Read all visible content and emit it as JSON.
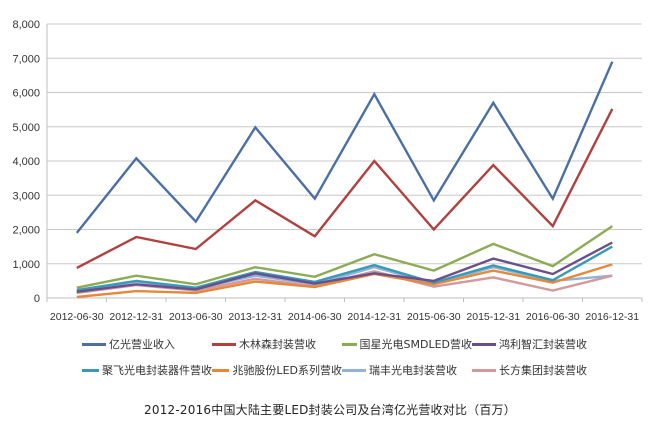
{
  "chart_data": {
    "type": "line",
    "title": "2012-2016中国大陆主要LED封装公司及台湾亿光营收对比（百万）",
    "xlabel": "",
    "ylabel": "",
    "ylim": [
      0,
      8000
    ],
    "yticks": [
      0,
      1000,
      2000,
      3000,
      4000,
      5000,
      6000,
      7000,
      8000
    ],
    "ytick_labels": [
      "0",
      "1,000",
      "2,000",
      "3,000",
      "4,000",
      "5,000",
      "6,000",
      "7,000",
      "8,000"
    ],
    "grid": true,
    "legend_position": "bottom",
    "categories": [
      "2012-06-30",
      "2012-12-31",
      "2013-06-30",
      "2013-12-31",
      "2014-06-30",
      "2014-12-31",
      "2015-06-30",
      "2015-12-31",
      "2016-06-30",
      "2016-12-31"
    ],
    "series": [
      {
        "name": "亿光营业收入",
        "color": "#4a6fa5",
        "values": [
          1900,
          4080,
          2230,
          4980,
          2900,
          5950,
          2850,
          5700,
          2900,
          6900
        ]
      },
      {
        "name": "木林森封装营收",
        "color": "#b0413e",
        "values": [
          880,
          1780,
          1430,
          2850,
          1800,
          4000,
          2000,
          3880,
          2100,
          5520
        ]
      },
      {
        "name": "国星光电SMDLED营收",
        "color": "#8cab54",
        "values": [
          300,
          650,
          400,
          900,
          620,
          1280,
          800,
          1580,
          930,
          2100
        ]
      },
      {
        "name": "鸿利智汇封装营收",
        "color": "#6a4f8c",
        "values": [
          180,
          400,
          250,
          720,
          420,
          720,
          500,
          1150,
          700,
          1620
        ]
      },
      {
        "name": "聚飞光电封装器件营收",
        "color": "#3a9ab5",
        "values": [
          230,
          500,
          300,
          760,
          470,
          960,
          450,
          950,
          520,
          1500
        ]
      },
      {
        "name": "兆驰股份LED系列营收",
        "color": "#e6883a",
        "values": [
          30,
          200,
          150,
          480,
          320,
          700,
          400,
          800,
          450,
          980
        ]
      },
      {
        "name": "瑞丰光电封装营收",
        "color": "#8fb3d9",
        "values": [
          200,
          480,
          280,
          650,
          400,
          900,
          420,
          900,
          500,
          650
        ]
      },
      {
        "name": "长方集团封装营收",
        "color": "#d39a9a",
        "values": [
          150,
          380,
          220,
          560,
          340,
          780,
          330,
          600,
          220,
          650
        ]
      }
    ]
  },
  "legend": {
    "items": [
      {
        "label": "亿光营业收入",
        "color": "#4a6fa5"
      },
      {
        "label": "木林森封装营收",
        "color": "#b0413e"
      },
      {
        "label": "国星光电SMDLED营收",
        "color": "#8cab54"
      },
      {
        "label": "鸿利智汇封装营收",
        "color": "#6a4f8c"
      },
      {
        "label": "聚飞光电封装器件营收",
        "color": "#3a9ab5"
      },
      {
        "label": "兆驰股份LED系列营收",
        "color": "#e6883a"
      },
      {
        "label": "瑞丰光电封装营收",
        "color": "#8fb3d9"
      },
      {
        "label": "长方集团封装营收",
        "color": "#d39a9a"
      }
    ]
  },
  "caption": "2012-2016中国大陆主要LED封装公司及台湾亿光营收对比（百万）"
}
